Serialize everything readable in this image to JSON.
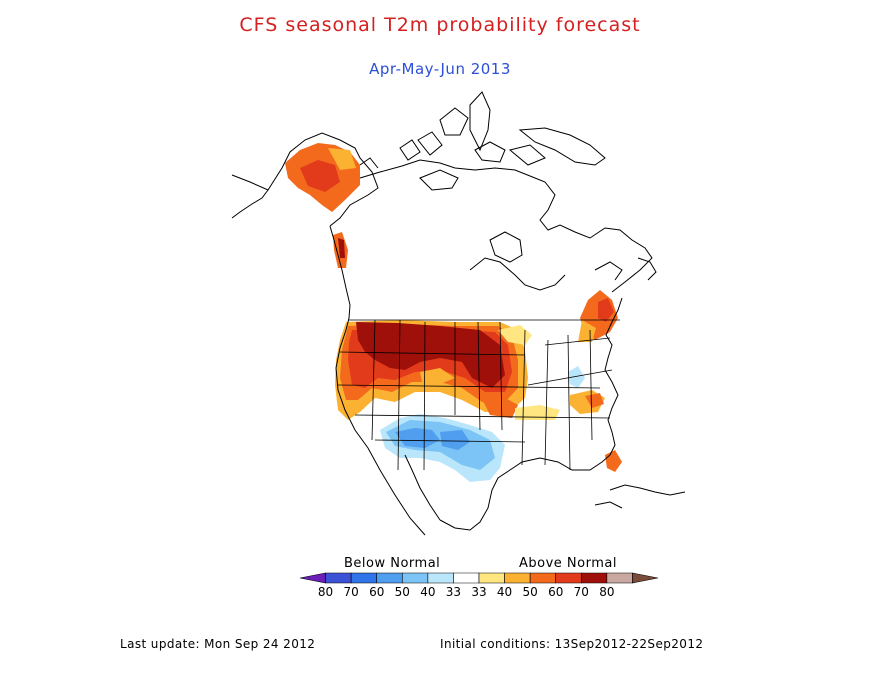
{
  "title": "CFS seasonal T2m probability forecast",
  "subtitle": "Apr-May-Jun 2013",
  "legend": {
    "below_label": "Below Normal",
    "above_label": "Above Normal",
    "tick_labels": [
      "80",
      "70",
      "60",
      "50",
      "40",
      "33",
      "33",
      "40",
      "50",
      "60",
      "70",
      "80"
    ],
    "colors": [
      "#6a1fb8",
      "#3c52d6",
      "#2f74e8",
      "#4f9ef0",
      "#7bc4f5",
      "#b9e6fb",
      "#ffffff",
      "#ffe680",
      "#fbb232",
      "#f46a1d",
      "#e23b1b",
      "#a0100a",
      "#c8a8a0",
      "#7a4a3a"
    ]
  },
  "footer": {
    "last_update": "Last update: Mon Sep 24 2012",
    "initial_conditions": "Initial conditions: 13Sep2012-22Sep2012"
  },
  "map_colors": {
    "dark_red": "#a0100a",
    "red": "#e23b1b",
    "orange_red": "#f46a1d",
    "orange": "#fbb232",
    "yellow": "#ffe680",
    "light_blue": "#b9e6fb",
    "mid_blue": "#7bc4f5",
    "blue": "#4f9ef0"
  }
}
